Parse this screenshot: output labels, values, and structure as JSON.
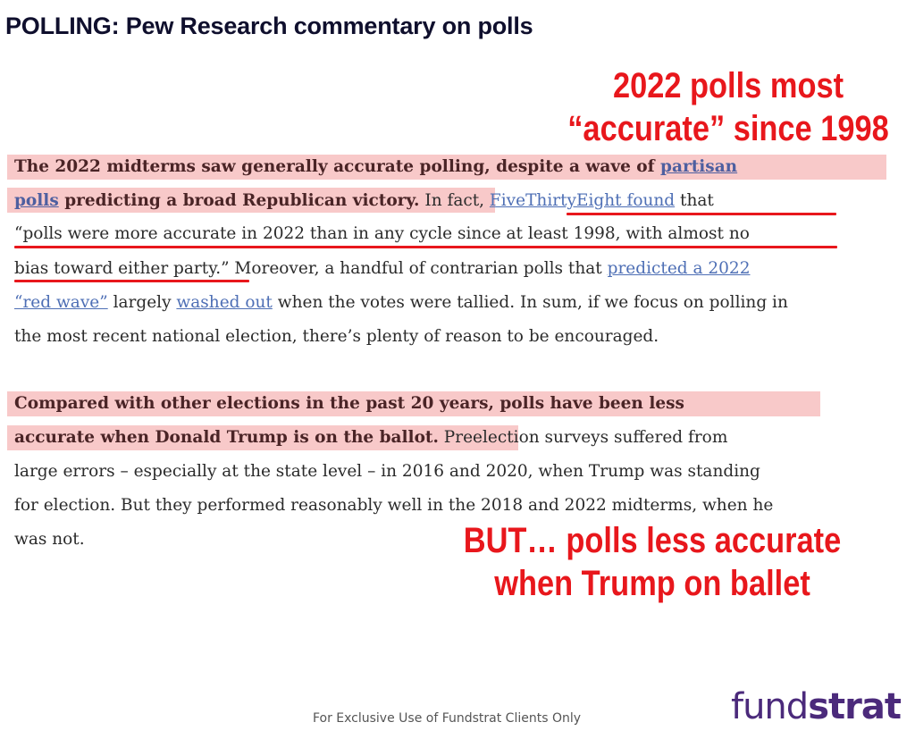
{
  "slide": {
    "title": "POLLING: Pew Research commentary on polls",
    "callout_top": [
      "2022 polls most",
      "“accurate” since 1998"
    ],
    "callout_bottom": [
      "BUT… polls less accurate",
      "when Trump on ballet"
    ],
    "footer": "For Exclusive Use of Fundstrat Clients Only",
    "logo": {
      "part1": "fund",
      "part2": "strat"
    }
  },
  "p1": {
    "l1_bold": "The 2022 midterms saw generally accurate polling, despite a wave of ",
    "l1_link": "partisan",
    "l2_link": "polls",
    "l2_bold": " predicting a broad Republican victory.",
    "l2_text": " In fact, ",
    "l2_link2": "FiveThirtyEight found",
    "l2_text2": " that",
    "l3_text": "“polls were more accurate in 2022 than in any cycle since at least 1998, with almost no",
    "l4_text": "bias toward either party.” Moreover, a handful of contrarian polls that ",
    "l4_link": "predicted a 2022",
    "l5_link": "“red wave”",
    "l5_text": " largely ",
    "l5_link2": "washed out",
    "l5_text2": " when the votes were tallied. In sum, if we focus on polling in",
    "l6_text": "the most recent national election, there’s plenty of reason to be encouraged."
  },
  "p2": {
    "l1_bold": "Compared with other elections in the past 20 years, polls have been less",
    "l2_bold": "accurate when Donald Trump is on the ballot.",
    "l2_text": " Preelection surveys suffered from",
    "l3_text": "large errors – especially at the state level – in 2016 and 2020, when Trump was standing",
    "l4_text": "for election. But they performed reasonably well in the 2018 and 2022 midterms, when he",
    "l5_text": "was not."
  },
  "colors": {
    "accent_red": "#e8171c",
    "highlight_pink": "#f8c9c9",
    "link_blue": "#4e6fb5",
    "logo_purple": "#4b2a7b"
  }
}
